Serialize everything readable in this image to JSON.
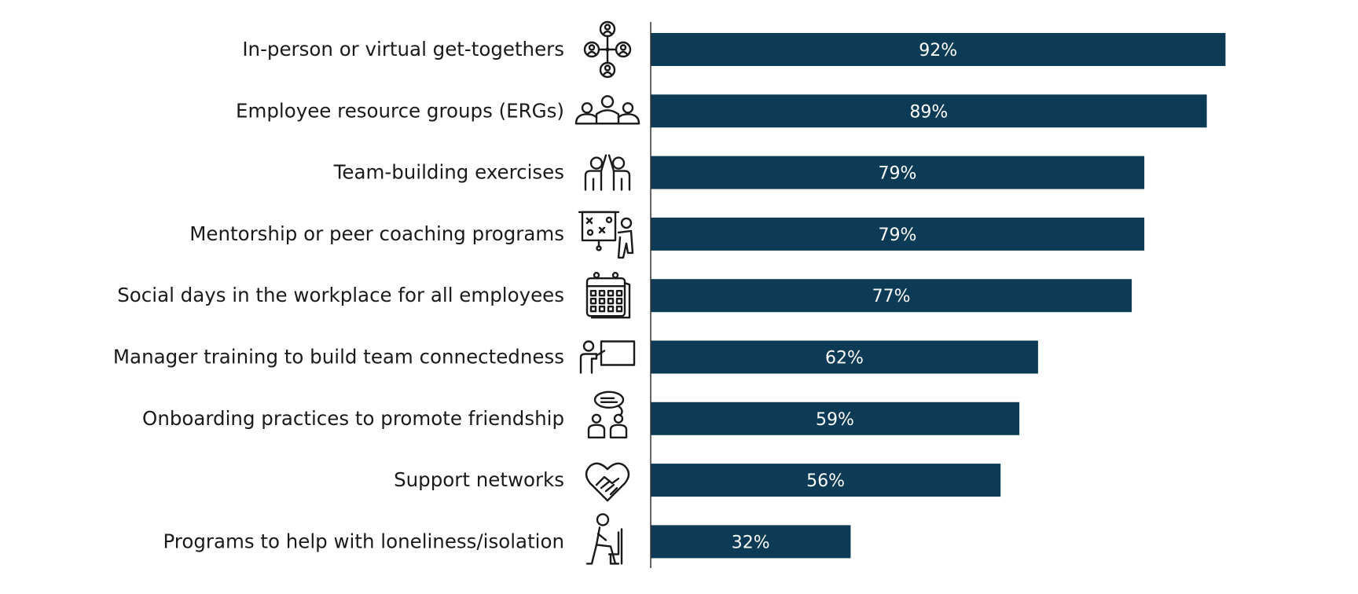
{
  "chart_data": {
    "type": "bar",
    "orientation": "horizontal",
    "categories": [
      "In-person or virtual get-togethers",
      "Employee resource groups (ERGs)",
      "Team-building exercises",
      "Mentorship or peer coaching programs",
      "Social days in the workplace for all employees",
      "Manager training to build team connectedness",
      "Onboarding practices to promote friendship",
      "Support networks",
      "Programs to help with loneliness/isolation"
    ],
    "values": [
      92,
      89,
      79,
      79,
      77,
      62,
      59,
      56,
      32
    ],
    "value_labels": [
      "92%",
      "89%",
      "79%",
      "79%",
      "77%",
      "62%",
      "59%",
      "56%",
      "32%"
    ],
    "icons": [
      "network-people-icon",
      "group-icon",
      "high-five-icon",
      "presentation-coach-icon",
      "calendar-icon",
      "teacher-board-icon",
      "chat-pair-icon",
      "heart-handshake-icon",
      "seated-person-icon"
    ],
    "xlim": [
      0,
      100
    ],
    "grid": false,
    "legend": "none",
    "bar_color": "#0d3b55",
    "axis_color": "#333333"
  }
}
